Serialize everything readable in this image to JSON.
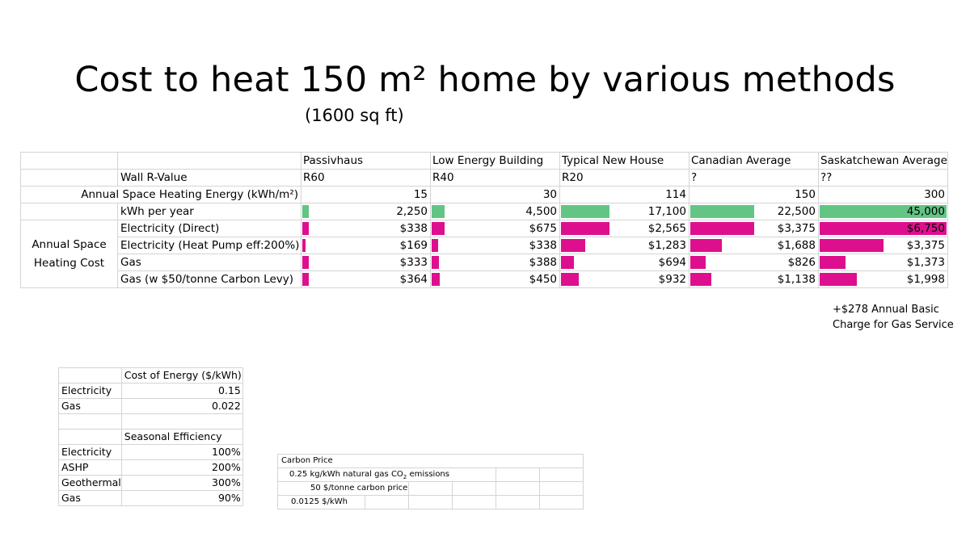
{
  "title": "Cost to heat 150 m² home by various methods",
  "subtitle": "(1600 sq ft)",
  "colors": {
    "green": "#62c584",
    "magenta": "#de0f8e"
  },
  "main_table": {
    "columns": [
      "Passivhaus",
      "Low Energy Building",
      "Typical New House",
      "Canadian Average",
      "Saskatchewan Average"
    ],
    "wall_label": "Wall R-Value",
    "wall_values": [
      "R60",
      "R40",
      "R20",
      "?",
      "??"
    ],
    "energy_label": "Annual Space Heating Energy (kWh/m²)",
    "energy_values": [
      "15",
      "30",
      "114",
      "150",
      "300"
    ],
    "kwh_label": "kWh per year",
    "kwh_values": [
      "2,250",
      "4,500",
      "17,100",
      "22,500",
      "45,000"
    ],
    "kwh_numbers": [
      2250,
      4500,
      17100,
      22500,
      45000
    ],
    "group_label": "Annual Space Heating Cost",
    "cost_rows": [
      {
        "label": "Electricity (Direct)",
        "values": [
          "$338",
          "$675",
          "$2,565",
          "$3,375",
          "$6,750"
        ],
        "numbers": [
          338,
          675,
          2565,
          3375,
          6750
        ]
      },
      {
        "label": "Electricity (Heat Pump eff:200%)",
        "values": [
          "$169",
          "$338",
          "$1,283",
          "$1,688",
          "$3,375"
        ],
        "numbers": [
          169,
          338,
          1283,
          1688,
          3375
        ]
      },
      {
        "label": "Gas",
        "values": [
          "$333",
          "$388",
          "$694",
          "$826",
          "$1,373"
        ],
        "numbers": [
          333,
          388,
          694,
          826,
          1373
        ]
      },
      {
        "label": "Gas (w $50/tonne Carbon Levy)",
        "values": [
          "$364",
          "$450",
          "$932",
          "$1,138",
          "$1,998"
        ],
        "numbers": [
          364,
          450,
          932,
          1138,
          1998
        ]
      }
    ],
    "kwh_max": 45000,
    "cost_max": 6750
  },
  "note": {
    "line1": "+$278 Annual Basic",
    "line2": "Charge for Gas Service"
  },
  "energy_cost": {
    "header": "Cost of Energy ($/kWh)",
    "rows": [
      {
        "label": "Electricity",
        "value": "0.15"
      },
      {
        "label": "Gas",
        "value": "0.022"
      }
    ]
  },
  "efficiency": {
    "header": "Seasonal Efficiency",
    "rows": [
      {
        "label": "Electricity",
        "value": "100%"
      },
      {
        "label": "ASHP",
        "value": "200%"
      },
      {
        "label": "Geothermal",
        "value": "300%"
      },
      {
        "label": "Gas",
        "value": "90%"
      }
    ]
  },
  "carbon": {
    "title": "Carbon Price",
    "row1_value": "0.25",
    "row1_text_pre": "kg/kWh natural gas CO",
    "row1_sub": "2",
    "row1_text_post": " emissions",
    "row2": "50 $/tonne carbon price",
    "row3": "0.0125 $/kWh"
  }
}
